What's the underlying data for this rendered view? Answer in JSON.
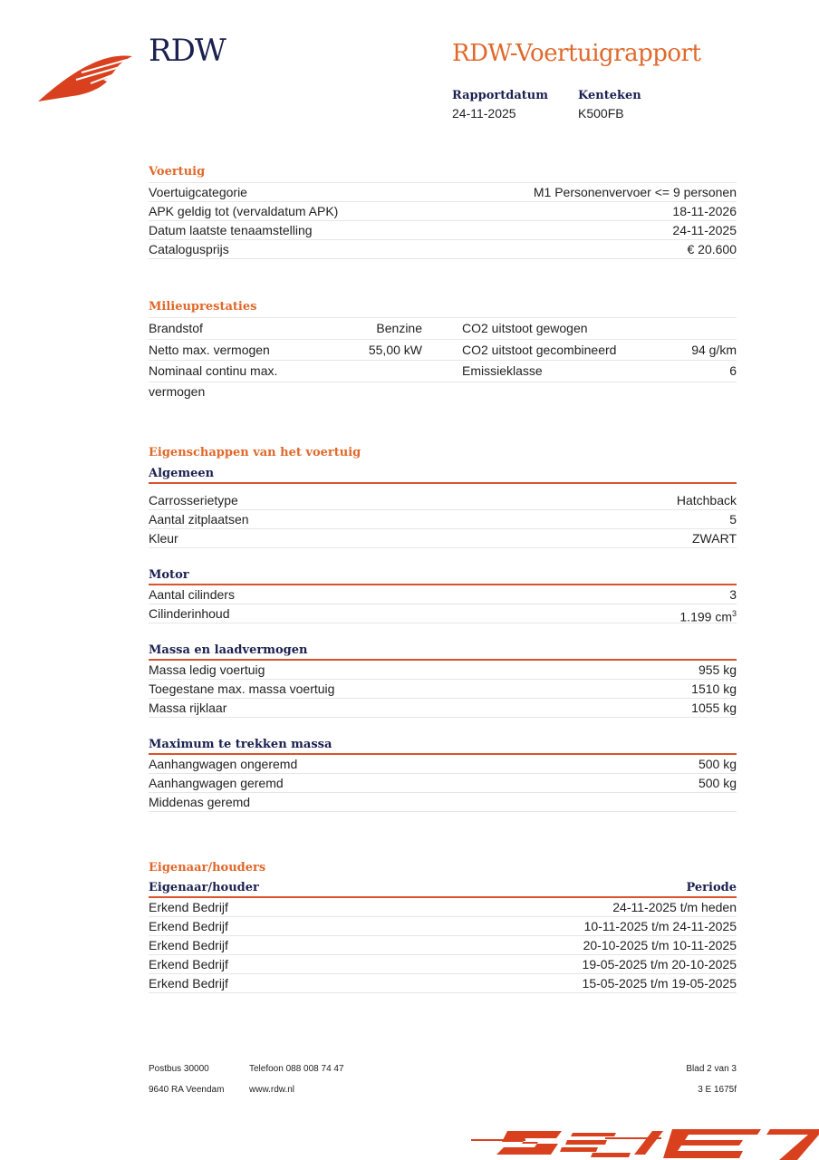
{
  "header": {
    "brand": "RDW",
    "report_title": "RDW-Voertuigrapport",
    "report_date_label": "Rapportdatum",
    "report_date": "24-11-2025",
    "plate_label": "Kenteken",
    "plate": "K500FB"
  },
  "vehicle": {
    "title": "Voertuig",
    "rows": [
      {
        "label": "Voertuigcategorie",
        "value": "M1 Personenvervoer <= 9 personen"
      },
      {
        "label": "APK geldig tot (vervaldatum APK)",
        "value": "18-11-2026"
      },
      {
        "label": "Datum laatste tenaamstelling",
        "value": "24-11-2025"
      },
      {
        "label": "Catalogusprijs",
        "value": "€ 20.600"
      }
    ]
  },
  "environment": {
    "title": "Milieuprestaties",
    "rows": [
      {
        "l1": "Brandstof",
        "v1": "Benzine",
        "l2": "CO2 uitstoot gewogen",
        "v2": ""
      },
      {
        "l1": "Netto max. vermogen",
        "v1": "55,00 kW",
        "l2": "CO2 uitstoot gecombineerd",
        "v2": "94 g/km"
      },
      {
        "l1": "Nominaal continu max. vermogen",
        "v1": "",
        "l2": "Emissieklasse",
        "v2": "6"
      }
    ]
  },
  "properties": {
    "title": "Eigenschappen van het voertuig",
    "groups": [
      {
        "title": "Algemeen",
        "rows": [
          {
            "label": "Carrosserietype",
            "value": "Hatchback"
          },
          {
            "label": "Aantal zitplaatsen",
            "value": "5"
          },
          {
            "label": "Kleur",
            "value": "ZWART"
          }
        ]
      },
      {
        "title": "Motor",
        "rows": [
          {
            "label": "Aantal cilinders",
            "value": "3"
          },
          {
            "label": "Cilinderinhoud",
            "value": "1.199 cm",
            "sup": "3"
          }
        ]
      },
      {
        "title": "Massa en laadvermogen",
        "rows": [
          {
            "label": "Massa ledig voertuig",
            "value": "955 kg"
          },
          {
            "label": "Toegestane max. massa voertuig",
            "value": "1510 kg"
          },
          {
            "label": "Massa rijklaar",
            "value": "1055 kg"
          }
        ]
      },
      {
        "title": "Maximum te trekken massa",
        "rows": [
          {
            "label": "Aanhangwagen ongeremd",
            "value": "500 kg"
          },
          {
            "label": "Aanhangwagen geremd",
            "value": "500 kg"
          },
          {
            "label": "Middenas geremd",
            "value": ""
          }
        ]
      }
    ]
  },
  "owners": {
    "title": "Eigenaar/houders",
    "col1": "Eigenaar/houder",
    "col2": "Periode",
    "rows": [
      {
        "owner": "Erkend Bedrijf",
        "period": "24-11-2025 t/m heden"
      },
      {
        "owner": "Erkend Bedrijf",
        "period": "10-11-2025 t/m 24-11-2025"
      },
      {
        "owner": "Erkend Bedrijf",
        "period": "20-10-2025 t/m 10-11-2025"
      },
      {
        "owner": "Erkend Bedrijf",
        "period": "19-05-2025 t/m 20-10-2025"
      },
      {
        "owner": "Erkend Bedrijf",
        "period": "15-05-2025 t/m 19-05-2025"
      }
    ]
  },
  "footer": {
    "po_box": "Postbus 30000",
    "postal": "9640 RA Veendam",
    "phone": "Telefoon 088 008 74 47",
    "website": "www.rdw.nl",
    "page": "Blad 2 van 3",
    "code": "3 E 1675f"
  },
  "colors": {
    "accent": "#e0682a",
    "navy": "#1b2150",
    "logo": "#d9411e"
  }
}
